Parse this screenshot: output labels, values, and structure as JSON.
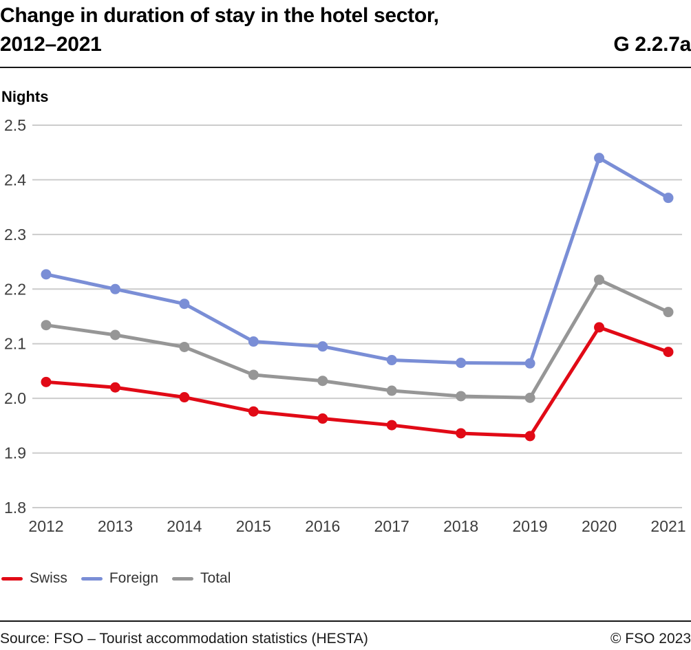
{
  "header": {
    "title_line1": "Change in duration of stay in the hotel sector,",
    "title_line2": "2012–2021",
    "figure_code": "G 2.2.7a"
  },
  "chart_data": {
    "type": "line",
    "title": "Change in duration of stay in the hotel sector, 2012–2021",
    "ylabel": "Nights",
    "xlabel": "",
    "x": [
      2012,
      2013,
      2014,
      2015,
      2016,
      2017,
      2018,
      2019,
      2020,
      2021
    ],
    "series": [
      {
        "name": "Swiss",
        "color": "#e10a16",
        "values": [
          2.03,
          2.02,
          2.002,
          1.976,
          1.963,
          1.951,
          1.936,
          1.931,
          2.13,
          2.085
        ]
      },
      {
        "name": "Foreign",
        "color": "#7a8ed6",
        "values": [
          2.227,
          2.2,
          2.173,
          2.104,
          2.095,
          2.07,
          2.065,
          2.064,
          2.44,
          2.367
        ]
      },
      {
        "name": "Total",
        "color": "#969696",
        "values": [
          2.134,
          2.116,
          2.094,
          2.043,
          2.032,
          2.014,
          2.004,
          2.001,
          2.217,
          2.158
        ]
      }
    ],
    "ylim": [
      1.8,
      2.5
    ],
    "ytick_step": 0.1,
    "yticks": [
      "1.8",
      "1.9",
      "2.0",
      "2.1",
      "2.2",
      "2.3",
      "2.4",
      "2.5"
    ],
    "grid": true,
    "grid_color": "#cccccc",
    "axis_text_color": "#3d3d3d",
    "legend_position": "bottom"
  },
  "footer": {
    "source": "Source: FSO – Tourist accommodation statistics (HESTA)",
    "copyright": "© FSO 2023"
  }
}
